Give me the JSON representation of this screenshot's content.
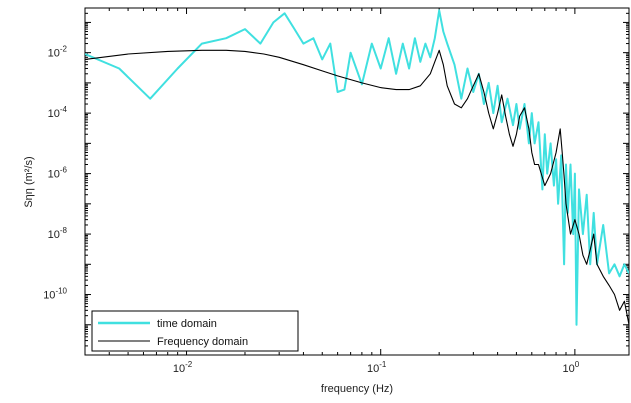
{
  "chart_data": {
    "type": "line",
    "xscale": "log",
    "yscale": "log",
    "xlim": [
      0.003,
      1.9
    ],
    "ylim": [
      1e-12,
      0.3
    ],
    "xlabel": "frequency (Hz)",
    "ylabel": "Sηη (m²/s)",
    "x_ticks": [
      {
        "value": 0.01,
        "base": "10",
        "exp": "-2"
      },
      {
        "value": 0.1,
        "base": "10",
        "exp": "-1"
      },
      {
        "value": 1,
        "base": "10",
        "exp": "0"
      }
    ],
    "y_ticks": [
      {
        "value": 0.01,
        "base": "10",
        "exp": "-2"
      },
      {
        "value": 0.0001,
        "base": "10",
        "exp": "-4"
      },
      {
        "value": 1e-06,
        "base": "10",
        "exp": "-6"
      },
      {
        "value": 1e-08,
        "base": "10",
        "exp": "-8"
      },
      {
        "value": 1e-10,
        "base": "10",
        "exp": "-10"
      }
    ],
    "legend_position": "bottom-left",
    "series": [
      {
        "name": "time domain",
        "color": "#40E0E0",
        "x": [
          0.003,
          0.0045,
          0.0065,
          0.009,
          0.012,
          0.016,
          0.02,
          0.024,
          0.028,
          0.032,
          0.036,
          0.04,
          0.045,
          0.05,
          0.055,
          0.06,
          0.065,
          0.07,
          0.08,
          0.09,
          0.1,
          0.11,
          0.12,
          0.13,
          0.14,
          0.15,
          0.16,
          0.17,
          0.18,
          0.19,
          0.2,
          0.21,
          0.22,
          0.24,
          0.26,
          0.28,
          0.3,
          0.32,
          0.34,
          0.36,
          0.38,
          0.4,
          0.42,
          0.45,
          0.48,
          0.5,
          0.52,
          0.55,
          0.58,
          0.6,
          0.62,
          0.65,
          0.68,
          0.7,
          0.72,
          0.75,
          0.78,
          0.8,
          0.82,
          0.85,
          0.88,
          0.9,
          0.92,
          0.95,
          0.98,
          1.0,
          1.02,
          1.05,
          1.1,
          1.15,
          1.2,
          1.25,
          1.3,
          1.4,
          1.5,
          1.6,
          1.7,
          1.8,
          1.9
        ],
        "y": [
          0.009,
          0.003,
          0.0003,
          0.003,
          0.02,
          0.03,
          0.06,
          0.02,
          0.1,
          0.2,
          0.06,
          0.02,
          0.03,
          0.006,
          0.02,
          0.0005,
          0.0006,
          0.01,
          0.0009,
          0.02,
          0.003,
          0.03,
          0.002,
          0.02,
          0.003,
          0.03,
          0.005,
          0.02,
          0.007,
          0.03,
          0.25,
          0.05,
          0.02,
          0.004,
          0.0003,
          0.003,
          0.0005,
          0.002,
          0.0002,
          0.001,
          0.0001,
          0.0008,
          5e-05,
          0.0003,
          4e-05,
          0.0002,
          3e-05,
          0.0002,
          1e-05,
          0.0001,
          1e-05,
          5e-05,
          3e-07,
          2e-05,
          1e-06,
          1e-05,
          4e-07,
          3e-06,
          1e-07,
          4e-06,
          1e-09,
          2e-06,
          5e-08,
          2e-06,
          1e-08,
          1e-06,
          1e-11,
          3e-07,
          1e-08,
          2e-07,
          1e-09,
          5e-08,
          1e-09,
          2e-08,
          5e-10,
          1e-09,
          4e-10,
          1e-09,
          5e-10
        ]
      },
      {
        "name": "Frequency domain",
        "color": "#000000",
        "x": [
          0.003,
          0.005,
          0.008,
          0.012,
          0.016,
          0.02,
          0.025,
          0.03,
          0.04,
          0.05,
          0.06,
          0.08,
          0.1,
          0.12,
          0.14,
          0.16,
          0.18,
          0.19,
          0.2,
          0.21,
          0.22,
          0.24,
          0.26,
          0.28,
          0.3,
          0.32,
          0.34,
          0.36,
          0.38,
          0.4,
          0.42,
          0.44,
          0.46,
          0.48,
          0.5,
          0.52,
          0.55,
          0.58,
          0.6,
          0.62,
          0.65,
          0.7,
          0.75,
          0.8,
          0.84,
          0.86,
          0.88,
          0.9,
          0.95,
          1.0,
          1.05,
          1.1,
          1.15,
          1.2,
          1.25,
          1.3,
          1.4,
          1.5,
          1.6,
          1.7,
          1.8,
          1.9
        ],
        "y": [
          0.006,
          0.009,
          0.011,
          0.012,
          0.012,
          0.011,
          0.009,
          0.007,
          0.004,
          0.0025,
          0.0017,
          0.001,
          0.0007,
          0.0006,
          0.0006,
          0.0008,
          0.002,
          0.005,
          0.012,
          0.004,
          0.0008,
          0.0002,
          0.00015,
          0.0003,
          0.0008,
          0.002,
          0.0005,
          0.0001,
          3e-05,
          0.0001,
          0.0004,
          8e-05,
          2e-05,
          8e-06,
          2e-05,
          8e-05,
          0.00015,
          3e-05,
          5e-06,
          2e-06,
          2e-06,
          4e-07,
          1e-06,
          5e-06,
          3e-05,
          5e-06,
          8e-07,
          1e-07,
          1e-08,
          3e-08,
          1e-08,
          2e-09,
          1e-09,
          3e-09,
          1e-08,
          1e-09,
          4e-10,
          2e-10,
          1e-10,
          3e-11,
          6e-11,
          1e-11
        ]
      }
    ]
  }
}
